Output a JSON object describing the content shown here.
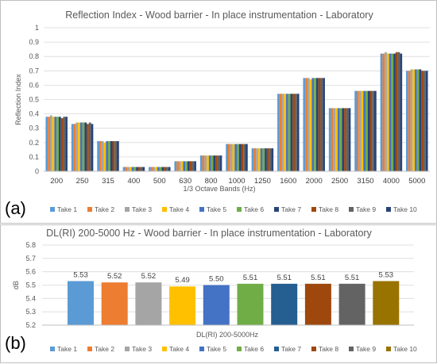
{
  "panel_labels": {
    "a": "(a)",
    "b": "(b)"
  },
  "chart_data": [
    {
      "type": "bar",
      "title": "Reflection Index - Wood barrier - In place instrumentation - Laboratory",
      "xlabel": "1/3 Octave Bands (Hz)",
      "ylabel": "Reflection Index",
      "ylim": [
        0,
        1
      ],
      "yticks": [
        "0",
        "0.1",
        "0.2",
        "0.3",
        "0.4",
        "0.5",
        "0.6",
        "0.7",
        "0.8",
        "0.9",
        "1"
      ],
      "grid": true,
      "legend": "bottom",
      "categories": [
        "200",
        "250",
        "315",
        "400",
        "500",
        "630",
        "800",
        "1000",
        "1250",
        "1600",
        "2000",
        "2500",
        "3150",
        "4000",
        "5000"
      ],
      "series": [
        {
          "name": "Take 1",
          "color": "#5B9BD5",
          "values": [
            0.38,
            0.33,
            0.21,
            0.03,
            0.03,
            0.07,
            0.11,
            0.19,
            0.16,
            0.54,
            0.65,
            0.44,
            0.56,
            0.82,
            0.7
          ]
        },
        {
          "name": "Take 2",
          "color": "#ED7D31",
          "values": [
            0.38,
            0.33,
            0.21,
            0.03,
            0.03,
            0.07,
            0.11,
            0.19,
            0.16,
            0.54,
            0.65,
            0.44,
            0.56,
            0.82,
            0.7
          ]
        },
        {
          "name": "Take 3",
          "color": "#A5A5A5",
          "values": [
            0.39,
            0.34,
            0.21,
            0.03,
            0.03,
            0.07,
            0.11,
            0.19,
            0.16,
            0.54,
            0.65,
            0.44,
            0.56,
            0.83,
            0.71
          ]
        },
        {
          "name": "Take 4",
          "color": "#FFC000",
          "values": [
            0.38,
            0.34,
            0.2,
            0.03,
            0.03,
            0.07,
            0.11,
            0.19,
            0.16,
            0.54,
            0.64,
            0.44,
            0.56,
            0.82,
            0.71
          ]
        },
        {
          "name": "Take 5",
          "color": "#4472C4",
          "values": [
            0.38,
            0.34,
            0.21,
            0.03,
            0.03,
            0.07,
            0.11,
            0.19,
            0.16,
            0.54,
            0.65,
            0.44,
            0.56,
            0.82,
            0.71
          ]
        },
        {
          "name": "Take 6",
          "color": "#70AD47",
          "values": [
            0.38,
            0.34,
            0.21,
            0.03,
            0.03,
            0.07,
            0.11,
            0.19,
            0.16,
            0.54,
            0.65,
            0.44,
            0.56,
            0.82,
            0.71
          ]
        },
        {
          "name": "Take 7",
          "color": "#264478",
          "values": [
            0.38,
            0.34,
            0.21,
            0.03,
            0.03,
            0.07,
            0.11,
            0.19,
            0.16,
            0.54,
            0.65,
            0.44,
            0.56,
            0.82,
            0.71
          ]
        },
        {
          "name": "Take 8",
          "color": "#9E480E",
          "values": [
            0.37,
            0.33,
            0.21,
            0.03,
            0.03,
            0.07,
            0.11,
            0.19,
            0.16,
            0.54,
            0.65,
            0.44,
            0.56,
            0.83,
            0.7
          ]
        },
        {
          "name": "Take 9",
          "color": "#636363",
          "values": [
            0.38,
            0.34,
            0.21,
            0.03,
            0.03,
            0.07,
            0.11,
            0.19,
            0.16,
            0.54,
            0.65,
            0.44,
            0.56,
            0.83,
            0.7
          ]
        },
        {
          "name": "Take 10",
          "color": "#264478",
          "values": [
            0.38,
            0.33,
            0.21,
            0.03,
            0.03,
            0.07,
            0.11,
            0.19,
            0.16,
            0.54,
            0.65,
            0.44,
            0.56,
            0.82,
            0.7
          ]
        }
      ]
    },
    {
      "type": "bar",
      "title": "DL(RI) 200-5000 Hz - Wood barrier - In place instrumentation - Laboratory",
      "xlabel": "DL(RI) 200-5000Hz",
      "ylabel": "dB",
      "ylim": [
        5.2,
        5.8
      ],
      "yticks": [
        "5.2",
        "5.3",
        "5.4",
        "5.5",
        "5.6",
        "5.7",
        "5.8"
      ],
      "grid": true,
      "legend": "bottom",
      "series": [
        {
          "name": "Take 1",
          "color": "#5B9BD5",
          "value": 5.53,
          "label": "5.53"
        },
        {
          "name": "Take 2",
          "color": "#ED7D31",
          "value": 5.52,
          "label": "5.52"
        },
        {
          "name": "Take 3",
          "color": "#A5A5A5",
          "value": 5.52,
          "label": "5.52"
        },
        {
          "name": "Take 4",
          "color": "#FFC000",
          "value": 5.49,
          "label": "5.49"
        },
        {
          "name": "Take 5",
          "color": "#4472C4",
          "value": 5.5,
          "label": "5.50"
        },
        {
          "name": "Take 6",
          "color": "#70AD47",
          "value": 5.51,
          "label": "5.51"
        },
        {
          "name": "Take 7",
          "color": "#255E91",
          "value": 5.51,
          "label": "5.51"
        },
        {
          "name": "Take 8",
          "color": "#9E480E",
          "value": 5.51,
          "label": "5.51"
        },
        {
          "name": "Take 9",
          "color": "#636363",
          "value": 5.51,
          "label": "5.51"
        },
        {
          "name": "Take 10",
          "color": "#997300",
          "value": 5.53,
          "label": "5.53"
        }
      ]
    }
  ]
}
